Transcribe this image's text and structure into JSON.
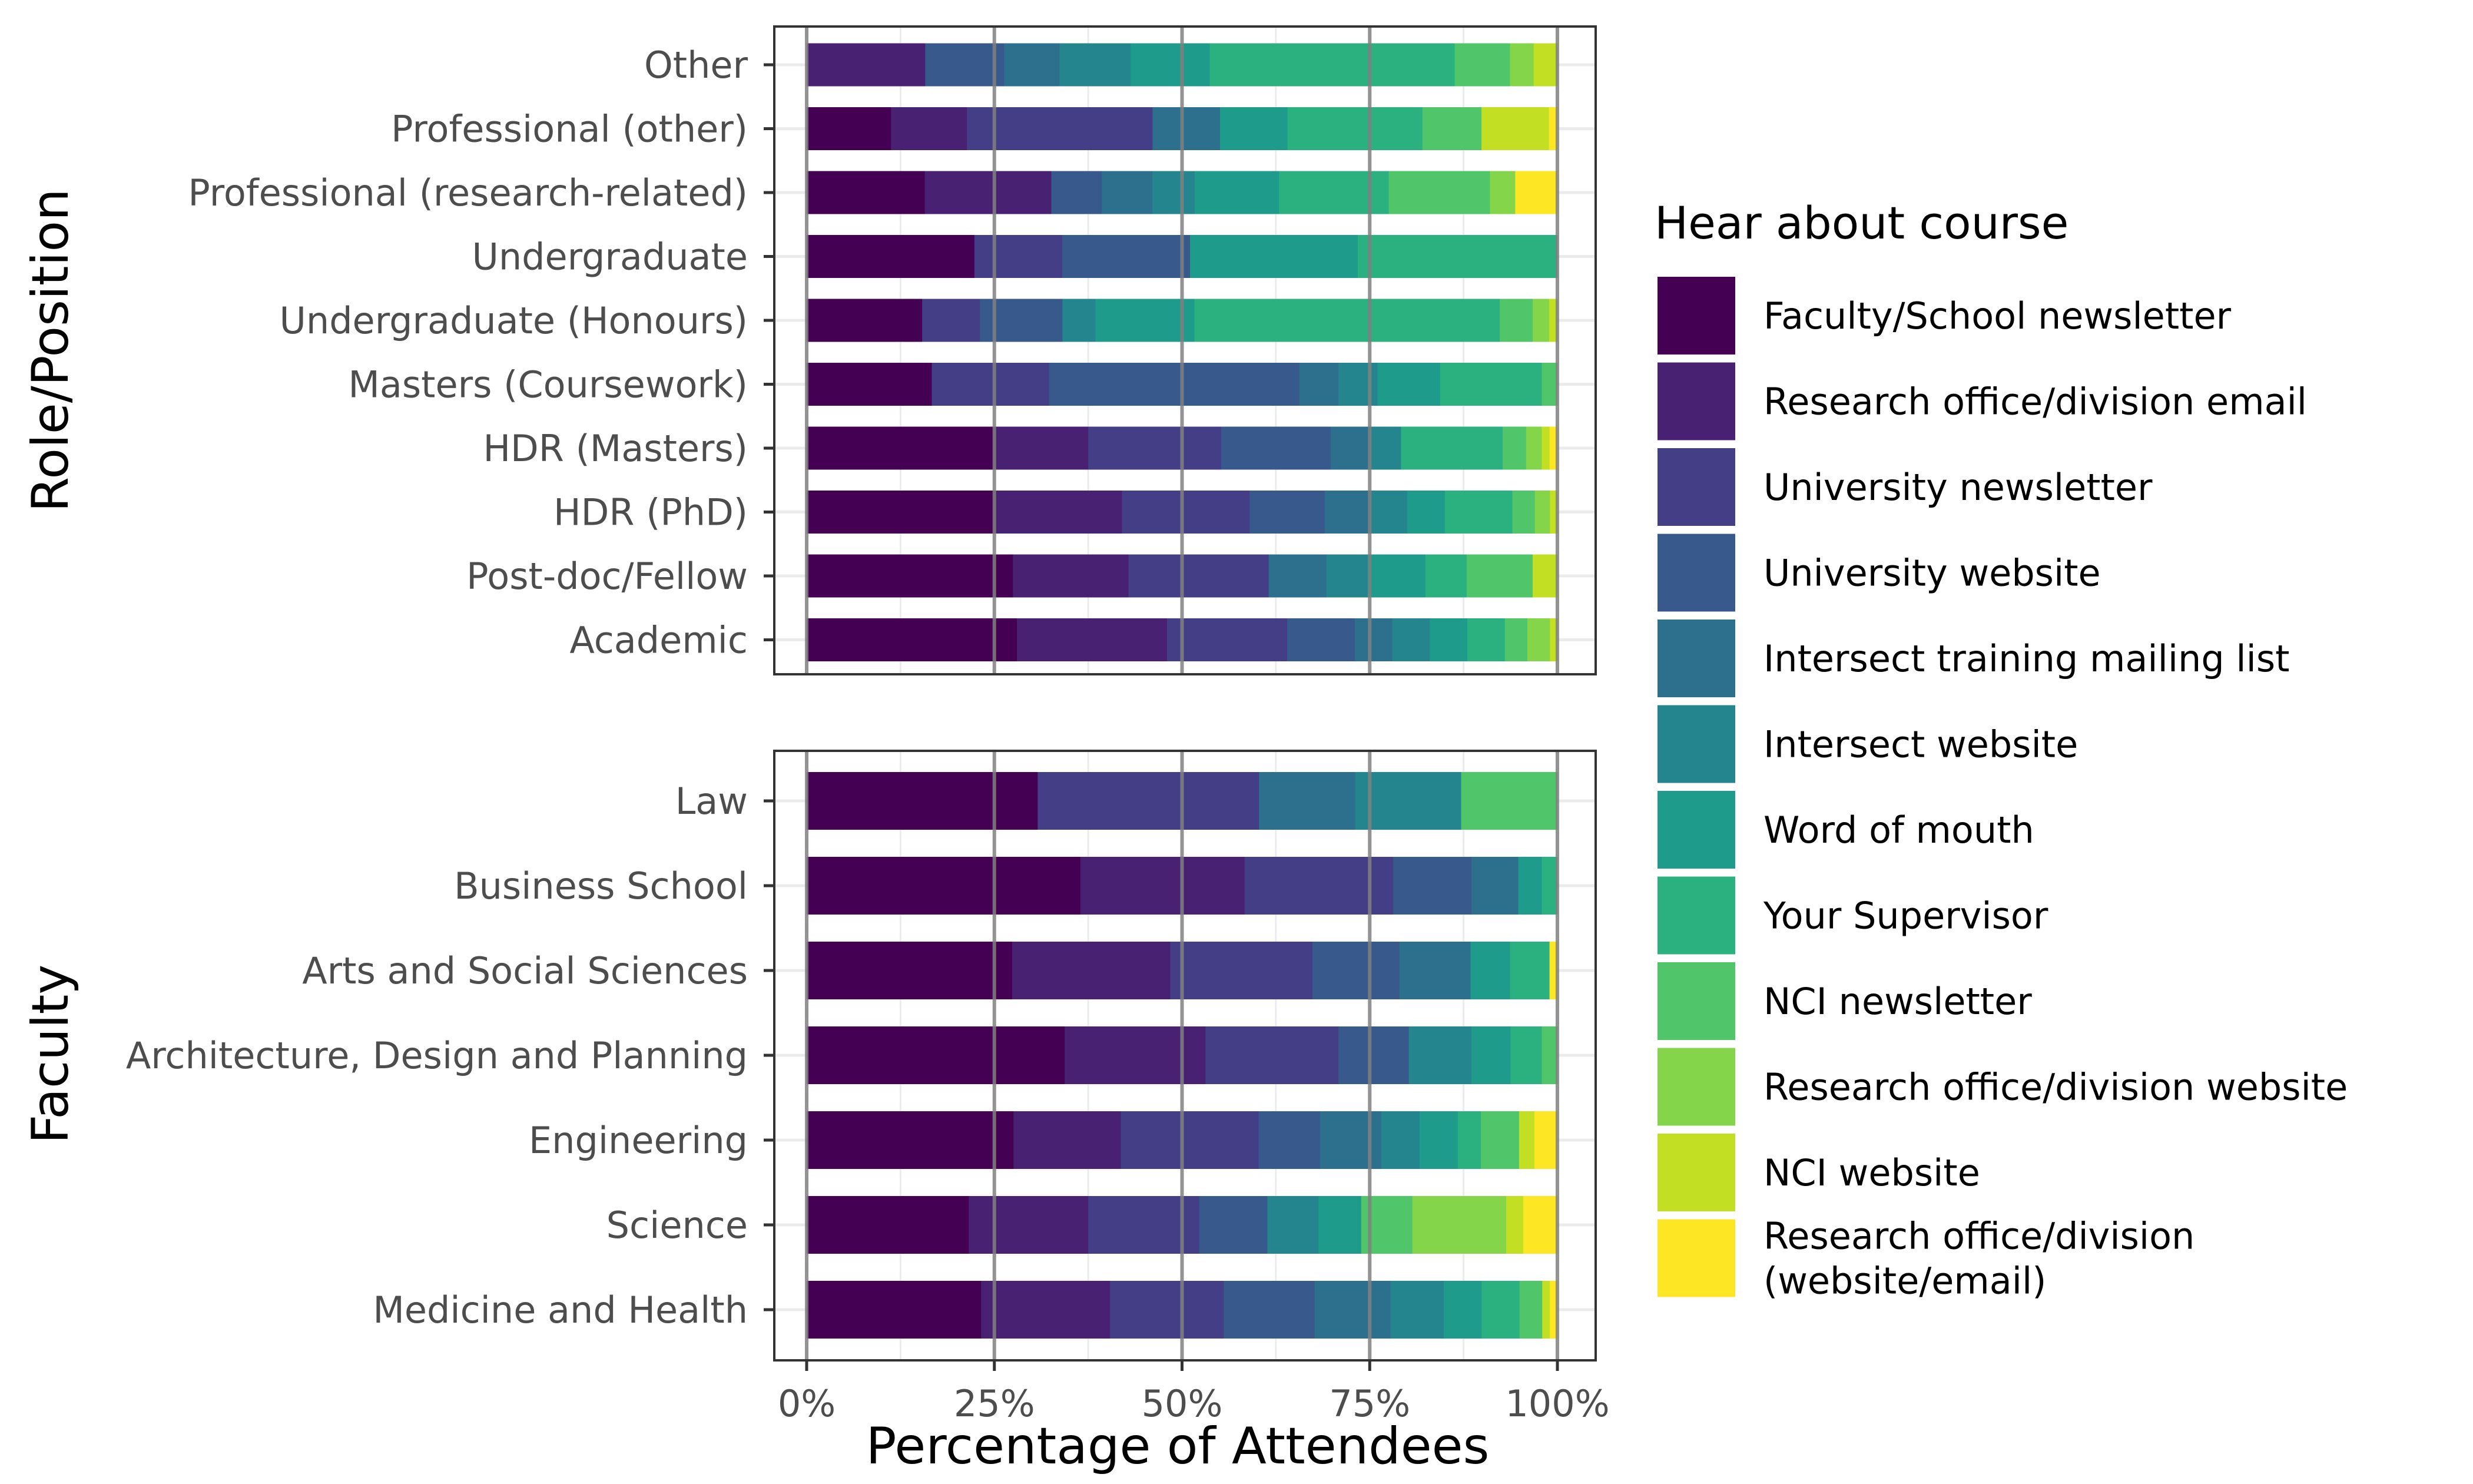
{
  "chart_data": [
    {
      "type": "bar",
      "orientation": "horizontal",
      "stacked": "percent",
      "ylabel": "Role/Position",
      "categories": [
        "Other",
        "Professional (other)",
        "Professional (research-related)",
        "Undergraduate",
        "Undergraduate (Honours)",
        "Masters (Coursework)",
        "HDR (Masters)",
        "HDR (PhD)",
        "Post-doc/Fellow",
        "Academic"
      ],
      "series": [
        {
          "name": "Faculty/School newsletter",
          "values": [
            0,
            10,
            14,
            21,
            14,
            16,
            24,
            25,
            25,
            28
          ]
        },
        {
          "name": "Research office/division email",
          "values": [
            15,
            9,
            15,
            0,
            0,
            0,
            12,
            17,
            14,
            20
          ]
        },
        {
          "name": "University newsletter",
          "values": [
            0,
            22,
            0,
            11,
            7,
            15,
            17,
            17,
            17,
            16
          ]
        },
        {
          "name": "University website",
          "values": [
            10,
            0,
            6,
            16,
            10,
            32,
            14,
            10,
            0,
            9
          ]
        },
        {
          "name": "Intersect training mailing list",
          "values": [
            7,
            8,
            6,
            0,
            0,
            5,
            5,
            6,
            7,
            5
          ]
        },
        {
          "name": "Intersect website",
          "values": [
            9,
            0,
            5,
            0,
            4,
            5,
            4,
            5,
            5,
            5
          ]
        },
        {
          "name": "Word of mouth",
          "values": [
            10,
            8,
            10,
            21,
            12,
            8,
            0,
            5,
            7,
            5
          ]
        },
        {
          "name": "Your Supervisor",
          "values": [
            31,
            16,
            13,
            25,
            37,
            13,
            13,
            9,
            5,
            5
          ]
        },
        {
          "name": "NCI newsletter",
          "values": [
            7,
            7,
            12,
            0,
            4,
            2,
            3,
            3,
            8,
            3
          ]
        },
        {
          "name": "Research office/division website",
          "values": [
            3,
            0,
            3,
            0,
            2,
            0,
            2,
            2,
            0,
            3
          ]
        },
        {
          "name": "NCI website",
          "values": [
            3,
            8,
            0,
            0,
            1,
            0,
            1,
            1,
            3,
            1
          ]
        },
        {
          "name": "Research office/division (website/email)",
          "values": [
            0,
            1,
            5,
            0,
            0,
            0,
            1,
            0,
            0,
            0
          ]
        }
      ]
    },
    {
      "type": "bar",
      "orientation": "horizontal",
      "stacked": "percent",
      "ylabel": "Faculty",
      "categories": [
        "Law",
        "Business School",
        "Arts and Social Sciences",
        "Architecture, Design and Planning",
        "Engineering",
        "Science",
        "Medicine and Health"
      ],
      "series": [
        {
          "name": "Faculty/School newsletter",
          "values": [
            24,
            35,
            26,
            33,
            27,
            19,
            23
          ]
        },
        {
          "name": "Research office/division email",
          "values": [
            0,
            21,
            20,
            18,
            14,
            14,
            17
          ]
        },
        {
          "name": "University newsletter",
          "values": [
            23,
            19,
            18,
            17,
            18,
            13,
            15
          ]
        },
        {
          "name": "University website",
          "values": [
            0,
            10,
            11,
            9,
            8,
            8,
            12
          ]
        },
        {
          "name": "Intersect training mailing list",
          "values": [
            10,
            6,
            9,
            0,
            8,
            0,
            10
          ]
        },
        {
          "name": "Intersect website",
          "values": [
            11,
            0,
            0,
            8,
            5,
            6,
            7
          ]
        },
        {
          "name": "Word of mouth",
          "values": [
            0,
            3,
            5,
            5,
            5,
            5,
            5
          ]
        },
        {
          "name": "Your Supervisor",
          "values": [
            0,
            2,
            5,
            4,
            3,
            0,
            5
          ]
        },
        {
          "name": "NCI newsletter",
          "values": [
            10,
            0,
            0,
            2,
            5,
            6,
            3
          ]
        },
        {
          "name": "Research office/division website",
          "values": [
            0,
            0,
            0,
            0,
            0,
            11,
            0
          ]
        },
        {
          "name": "NCI website",
          "values": [
            0,
            0,
            0,
            0,
            2,
            2,
            1
          ]
        },
        {
          "name": "Research office/division (website/email)",
          "values": [
            0,
            0,
            1,
            0,
            3,
            4,
            1
          ]
        }
      ]
    }
  ],
  "xlabel": "Percentage of Attendees",
  "xticks": [
    "0%",
    "25%",
    "50%",
    "75%",
    "100%"
  ],
  "legend": {
    "title": "Hear about course",
    "position": "right",
    "entries": [
      {
        "label": [
          "Faculty/School newsletter"
        ],
        "color": "#440154"
      },
      {
        "label": [
          "Research office/division email"
        ],
        "color": "#482173"
      },
      {
        "label": [
          "University newsletter"
        ],
        "color": "#433E85"
      },
      {
        "label": [
          "University website"
        ],
        "color": "#38598C"
      },
      {
        "label": [
          "Intersect training mailing list"
        ],
        "color": "#2D708E"
      },
      {
        "label": [
          "Intersect website"
        ],
        "color": "#25858E"
      },
      {
        "label": [
          "Word of mouth"
        ],
        "color": "#1E9B8A"
      },
      {
        "label": [
          "Your Supervisor"
        ],
        "color": "#2BB07F"
      },
      {
        "label": [
          "NCI newsletter"
        ],
        "color": "#51C56A"
      },
      {
        "label": [
          "Research office/division website"
        ],
        "color": "#85D54A"
      },
      {
        "label": [
          "NCI website"
        ],
        "color": "#C2DF23"
      },
      {
        "label": [
          "Research office/division",
          "(website/email)"
        ],
        "color": "#FDE725"
      }
    ]
  }
}
